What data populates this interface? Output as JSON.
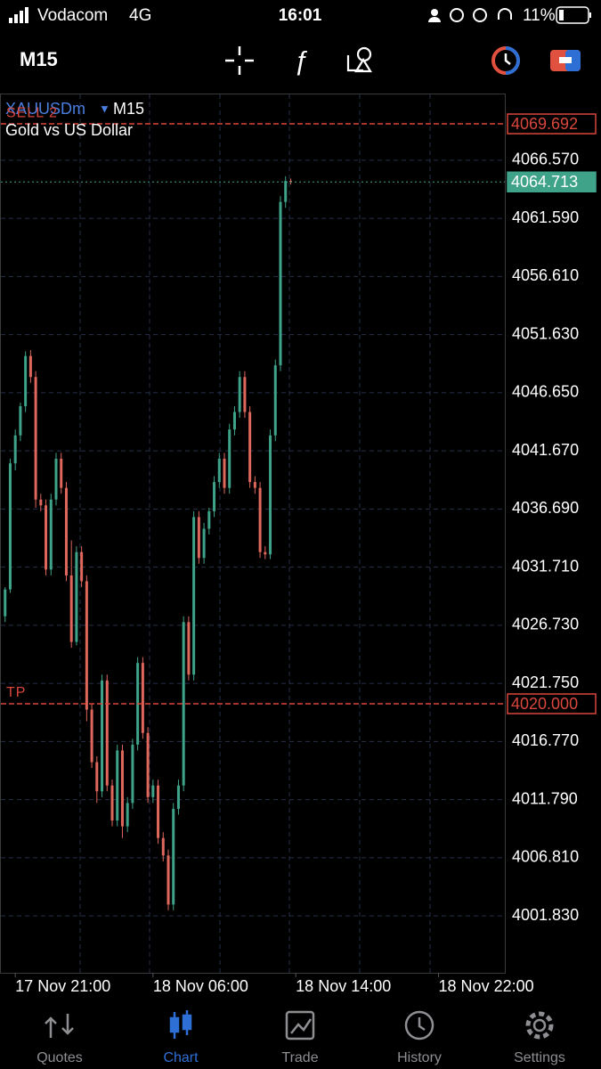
{
  "status_bar": {
    "carrier": "Vodacom",
    "network": "4G",
    "time": "16:01",
    "battery": "11%"
  },
  "toolbar": {
    "timeframe": "M15"
  },
  "chart_data": {
    "type": "candlestick",
    "symbol": "XAUUSDm",
    "timeframe": "M15",
    "description": "Gold vs US Dollar",
    "up_color": "#3fa38a",
    "down_color": "#e0675c",
    "grid": true,
    "ylim": [
      3996.95,
      4072.29
    ],
    "yticks": [
      {
        "value": 4066.57,
        "label": "4066.570"
      },
      {
        "value": 4061.59,
        "label": "4061.590"
      },
      {
        "value": 4056.61,
        "label": "4056.610"
      },
      {
        "value": 4051.63,
        "label": "4051.630"
      },
      {
        "value": 4046.65,
        "label": "4046.650"
      },
      {
        "value": 4041.67,
        "label": "4041.670"
      },
      {
        "value": 4036.69,
        "label": "4036.690"
      },
      {
        "value": 4031.71,
        "label": "4031.710"
      },
      {
        "value": 4026.73,
        "label": "4026.730"
      },
      {
        "value": 4021.75,
        "label": "4021.750"
      },
      {
        "value": 4016.77,
        "label": "4016.770"
      },
      {
        "value": 4011.79,
        "label": "4011.790"
      },
      {
        "value": 4006.81,
        "label": "4006.810"
      },
      {
        "value": 4001.83,
        "label": "4001.830"
      }
    ],
    "xlim": [
      -1,
      98
    ],
    "xticks": [
      {
        "value": 2,
        "label": "17 Nov 21:00"
      },
      {
        "value": 29,
        "label": "18 Nov 06:00"
      },
      {
        "value": 57,
        "label": "18 Nov 14:00"
      },
      {
        "value": 85,
        "label": "18 Nov 22:00"
      }
    ],
    "price_lines": [
      {
        "name": "SELL 2",
        "value": 4069.692,
        "label": "4069.692",
        "color": "#d9473c"
      },
      {
        "name": "TP",
        "value": 4020.0,
        "label": "4020.000",
        "color": "#d9473c"
      },
      {
        "value": 4064.713,
        "label": "4064.713",
        "color": "#3fa38a"
      }
    ],
    "ohlc": [
      [
        4027.5,
        4030.0,
        4027.0,
        4029.8
      ],
      [
        4029.8,
        4041.0,
        4029.5,
        4040.6
      ],
      [
        4040.6,
        4043.5,
        4040.0,
        4043.0
      ],
      [
        4043.0,
        4045.8,
        4042.5,
        4045.5
      ],
      [
        4045.5,
        4050.2,
        4045.0,
        4049.8
      ],
      [
        4049.8,
        4050.3,
        4047.5,
        4048.0
      ],
      [
        4048.0,
        4048.5,
        4036.8,
        4037.5
      ],
      [
        4037.5,
        4038.0,
        4036.5,
        4037.0
      ],
      [
        4037.0,
        4037.5,
        4031.0,
        4031.5
      ],
      [
        4031.5,
        4038.0,
        4031.0,
        4037.5
      ],
      [
        4037.5,
        4041.5,
        4037.0,
        4041.0
      ],
      [
        4041.0,
        4041.5,
        4038.0,
        4038.5
      ],
      [
        4038.5,
        4039.0,
        4030.5,
        4031.0
      ],
      [
        4031.0,
        4034.0,
        4024.8,
        4025.3
      ],
      [
        4025.3,
        4033.5,
        4025.0,
        4033.0
      ],
      [
        4033.0,
        4033.5,
        4030.0,
        4030.5
      ],
      [
        4030.5,
        4031.0,
        4018.5,
        4019.5
      ],
      [
        4019.5,
        4020.0,
        4014.5,
        4015.0
      ],
      [
        4015.0,
        4015.5,
        4011.5,
        4012.5
      ],
      [
        4012.5,
        4022.5,
        4012.0,
        4022.0
      ],
      [
        4022.0,
        4022.5,
        4012.5,
        4013.0
      ],
      [
        4013.0,
        4013.5,
        4009.5,
        4010.0
      ],
      [
        4010.0,
        4016.5,
        4009.5,
        4016.0
      ],
      [
        4016.0,
        4016.5,
        4008.5,
        4009.5
      ],
      [
        4009.5,
        4012.0,
        4009.0,
        4011.5
      ],
      [
        4011.5,
        4017.0,
        4011.0,
        4016.5
      ],
      [
        4016.5,
        4024.0,
        4016.0,
        4023.5
      ],
      [
        4023.5,
        4024.0,
        4017.0,
        4017.5
      ],
      [
        4017.5,
        4018.0,
        4011.5,
        4012.0
      ],
      [
        4012.0,
        4013.5,
        4011.5,
        4013.0
      ],
      [
        4013.0,
        4013.5,
        4008.0,
        4008.5
      ],
      [
        4008.5,
        4009.0,
        4006.5,
        4007.0
      ],
      [
        4007.0,
        4007.5,
        4002.3,
        4002.8
      ],
      [
        4002.8,
        4011.5,
        4002.3,
        4011.0
      ],
      [
        4011.0,
        4013.5,
        4010.5,
        4013.0
      ],
      [
        4013.0,
        4027.5,
        4012.5,
        4027.0
      ],
      [
        4027.0,
        4027.5,
        4022.0,
        4022.5
      ],
      [
        4022.5,
        4036.5,
        4022.0,
        4036.0
      ],
      [
        4036.0,
        4036.5,
        4032.0,
        4032.5
      ],
      [
        4032.5,
        4035.5,
        4032.0,
        4035.0
      ],
      [
        4035.0,
        4036.8,
        4034.5,
        4036.5
      ],
      [
        4036.5,
        4039.5,
        4036.0,
        4039.0
      ],
      [
        4039.0,
        4041.5,
        4038.5,
        4041.0
      ],
      [
        4041.0,
        4041.5,
        4038.0,
        4038.5
      ],
      [
        4038.5,
        4044.0,
        4038.0,
        4043.5
      ],
      [
        4043.5,
        4045.5,
        4043.0,
        4045.0
      ],
      [
        4045.0,
        4048.5,
        4044.5,
        4048.0
      ],
      [
        4048.0,
        4048.5,
        4044.5,
        4045.0
      ],
      [
        4045.0,
        4045.5,
        4038.5,
        4039.0
      ],
      [
        4039.0,
        4039.5,
        4038.0,
        4038.5
      ],
      [
        4038.5,
        4039.0,
        4032.5,
        4033.0
      ],
      [
        4033.0,
        4033.5,
        4032.4,
        4032.8
      ],
      [
        4032.8,
        4043.5,
        4032.4,
        4043.0
      ],
      [
        4043.0,
        4049.5,
        4042.5,
        4049.0
      ],
      [
        4049.0,
        4063.5,
        4048.5,
        4063.0
      ],
      [
        4063.0,
        4065.2,
        4062.5,
        4064.8
      ],
      [
        4064.8,
        4065.0,
        4064.5,
        4064.713
      ]
    ]
  },
  "tabs": {
    "items": [
      "Quotes",
      "Chart",
      "Trade",
      "History",
      "Settings"
    ],
    "active": 1
  }
}
